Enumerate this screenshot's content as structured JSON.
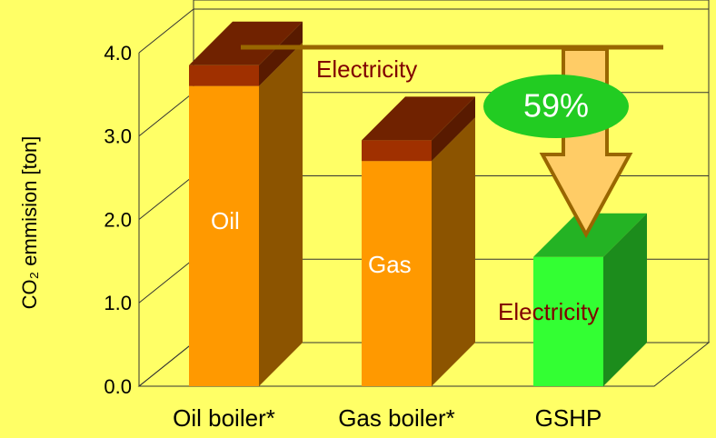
{
  "chart_data": {
    "type": "bar3d_stacked",
    "y_label": "CO₂ emmision [ton]",
    "categories": [
      "Oil boiler*",
      "Gas boiler*",
      "GSHP"
    ],
    "series": [
      {
        "name": "Oil",
        "color": "#ff9900",
        "values": [
          3.6,
          null,
          null
        ]
      },
      {
        "name": "Gas",
        "color": "#ff9900",
        "values": [
          null,
          2.7,
          null
        ]
      },
      {
        "name": "Electricity",
        "colors": [
          "#a03000",
          "#a03000",
          "#33ff33"
        ],
        "values": [
          0.25,
          0.25,
          1.55
        ]
      }
    ],
    "annotations": [
      "59%"
    ],
    "ylim": [
      0,
      4
    ],
    "yticks": [
      {
        "value": 0,
        "label": "0.0"
      },
      {
        "value": 1,
        "label": "1.0"
      },
      {
        "value": 2,
        "label": "2.0"
      },
      {
        "value": 3,
        "label": "3.0"
      },
      {
        "value": 4,
        "label": "4.0"
      }
    ],
    "grid": true
  }
}
